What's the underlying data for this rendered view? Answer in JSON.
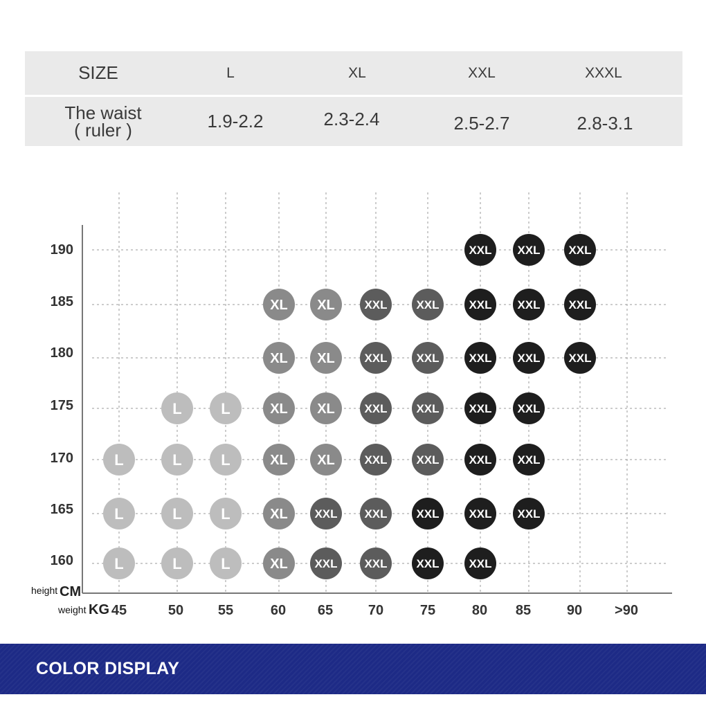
{
  "size_table": {
    "header": [
      "SIZE",
      "L",
      "XL",
      "XXL",
      "XXXL"
    ],
    "row": [
      "The waist\n( ruler )",
      "1.9-2.2",
      "2.3-2.4",
      "2.5-2.7",
      "2.8-3.1"
    ]
  },
  "chart_data": {
    "type": "scatter",
    "title": "",
    "y_unit_label": "height",
    "y_unit": "CM",
    "x_unit_label": "weight",
    "x_unit": "KG",
    "x_ticks": [
      "45",
      "50",
      "55",
      "60",
      "65",
      "70",
      "75",
      "80",
      "85",
      "90",
      ">90"
    ],
    "y_ticks": [
      "190",
      "185",
      "180",
      "175",
      "170",
      "165",
      "160"
    ],
    "grid": true,
    "size_colors": {
      "L": "#bdbdbd",
      "XL": "#8a8a8a",
      "XXL_medium": "#5c5c5c",
      "XXL_dark": "#1e1e1e"
    },
    "rows": [
      {
        "height": "190",
        "cells": [
          [
            "80",
            "XXL",
            "XXL_dark"
          ],
          [
            "85",
            "XXL",
            "XXL_dark"
          ],
          [
            "90",
            "XXL",
            "XXL_dark"
          ]
        ]
      },
      {
        "height": "185",
        "cells": [
          [
            "60",
            "XL",
            "XL"
          ],
          [
            "65",
            "XL",
            "XL"
          ],
          [
            "70",
            "XXL",
            "XXL_medium"
          ],
          [
            "75",
            "XXL",
            "XXL_medium"
          ],
          [
            "80",
            "XXL",
            "XXL_dark"
          ],
          [
            "85",
            "XXL",
            "XXL_dark"
          ],
          [
            "90",
            "XXL",
            "XXL_dark"
          ]
        ]
      },
      {
        "height": "180",
        "cells": [
          [
            "60",
            "XL",
            "XL"
          ],
          [
            "65",
            "XL",
            "XL"
          ],
          [
            "70",
            "XXL",
            "XXL_medium"
          ],
          [
            "75",
            "XXL",
            "XXL_medium"
          ],
          [
            "80",
            "XXL",
            "XXL_dark"
          ],
          [
            "85",
            "XXL",
            "XXL_dark"
          ],
          [
            "90",
            "XXL",
            "XXL_dark"
          ]
        ]
      },
      {
        "height": "175",
        "cells": [
          [
            "50",
            "L",
            "L"
          ],
          [
            "55",
            "L",
            "L"
          ],
          [
            "60",
            "XL",
            "XL"
          ],
          [
            "65",
            "XL",
            "XL"
          ],
          [
            "70",
            "XXL",
            "XXL_medium"
          ],
          [
            "75",
            "XXL",
            "XXL_medium"
          ],
          [
            "80",
            "XXL",
            "XXL_dark"
          ],
          [
            "85",
            "XXL",
            "XXL_dark"
          ]
        ]
      },
      {
        "height": "170",
        "cells": [
          [
            "45",
            "L",
            "L"
          ],
          [
            "50",
            "L",
            "L"
          ],
          [
            "55",
            "L",
            "L"
          ],
          [
            "60",
            "XL",
            "XL"
          ],
          [
            "65",
            "XL",
            "XL"
          ],
          [
            "70",
            "XXL",
            "XXL_medium"
          ],
          [
            "75",
            "XXL",
            "XXL_medium"
          ],
          [
            "80",
            "XXL",
            "XXL_dark"
          ],
          [
            "85",
            "XXL",
            "XXL_dark"
          ]
        ]
      },
      {
        "height": "165",
        "cells": [
          [
            "45",
            "L",
            "L"
          ],
          [
            "50",
            "L",
            "L"
          ],
          [
            "55",
            "L",
            "L"
          ],
          [
            "60",
            "XL",
            "XL"
          ],
          [
            "65",
            "XXL",
            "XXL_medium"
          ],
          [
            "70",
            "XXL",
            "XXL_medium"
          ],
          [
            "75",
            "XXL",
            "XXL_dark"
          ],
          [
            "80",
            "XXL",
            "XXL_dark"
          ],
          [
            "85",
            "XXL",
            "XXL_dark"
          ]
        ]
      },
      {
        "height": "160",
        "cells": [
          [
            "45",
            "L",
            "L"
          ],
          [
            "50",
            "L",
            "L"
          ],
          [
            "55",
            "L",
            "L"
          ],
          [
            "60",
            "XL",
            "XL"
          ],
          [
            "65",
            "XXL",
            "XXL_medium"
          ],
          [
            "70",
            "XXL",
            "XXL_medium"
          ],
          [
            "75",
            "XXL",
            "XXL_dark"
          ],
          [
            "80",
            "XXL",
            "XXL_dark"
          ]
        ]
      }
    ]
  },
  "color_display": {
    "label": "COLOR DISPLAY",
    "background": "#1d2a86"
  }
}
